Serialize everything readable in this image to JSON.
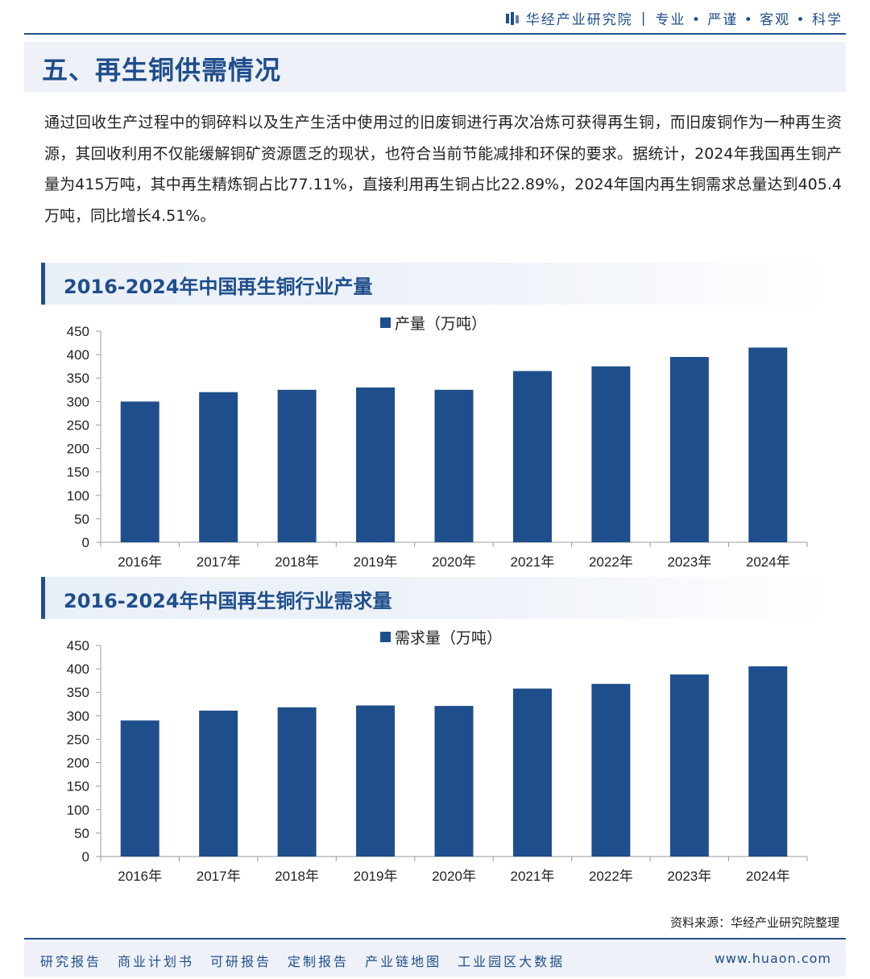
{
  "header": {
    "brand_name": "华经产业研究院",
    "tagline": "专业 • 严谨 • 客观 • 科学",
    "accent_color": "#1f4e8c"
  },
  "section": {
    "title": "五、再生铜供需情况"
  },
  "intro_text": "通过回收生产过程中的铜碎料以及生产生活中使用过的旧废铜进行再次冶炼可获得再生铜，而旧废铜作为一种再生资源，其回收利用不仅能缓解铜矿资源匮乏的现状，也符合当前节能减排和环保的要求。据统计，2024年我国再生铜产量为415万吨，其中再生精炼铜占比77.11%，直接利用再生铜占比22.89%，2024年国内再生铜需求总量达到405.4万吨，同比增长4.51%。",
  "chart_data": [
    {
      "type": "bar",
      "title": "2016-2024年中国再生铜行业产量",
      "categories": [
        "2016年",
        "2017年",
        "2018年",
        "2019年",
        "2020年",
        "2021年",
        "2022年",
        "2023年",
        "2024年"
      ],
      "series": [
        {
          "name": "产量（万吨）",
          "values": [
            300,
            320,
            325,
            330,
            325,
            365,
            375,
            395,
            415
          ],
          "color": "#1f4e8c"
        }
      ],
      "ylim": [
        0,
        450
      ],
      "yticks": [
        "0",
        "50",
        "100",
        "150",
        "200",
        "250",
        "300",
        "350",
        "400",
        "450"
      ],
      "grid": false,
      "legend": "top-center"
    },
    {
      "type": "bar",
      "title": "2016-2024年中国再生铜行业需求量",
      "categories": [
        "2016年",
        "2017年",
        "2018年",
        "2019年",
        "2020年",
        "2021年",
        "2022年",
        "2023年",
        "2024年"
      ],
      "series": [
        {
          "name": "需求量（万吨）",
          "values": [
            290,
            311,
            318,
            322,
            321,
            358,
            368,
            388,
            405.4
          ],
          "color": "#1f4e8c"
        }
      ],
      "ylim": [
        0,
        450
      ],
      "yticks": [
        "0",
        "50",
        "100",
        "150",
        "200",
        "250",
        "300",
        "350",
        "400",
        "450"
      ],
      "grid": false,
      "legend": "top-center"
    }
  ],
  "source_note": "资料来源：华经产业研究院整理",
  "footer": {
    "links": [
      "研究报告",
      "商业计划书",
      "可研报告",
      "定制报告",
      "产业链地图",
      "工业园区大数据"
    ],
    "url": "www.huaon.com"
  }
}
